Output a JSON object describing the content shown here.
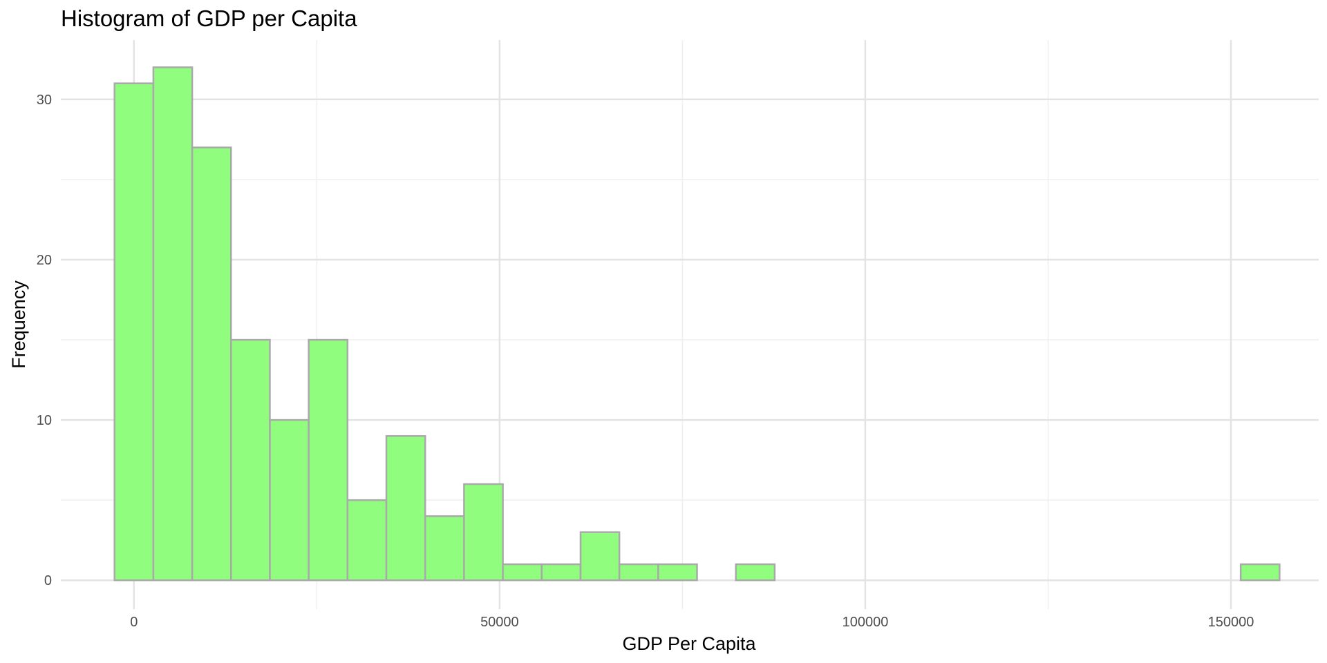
{
  "chart_data": {
    "type": "bar",
    "title": "Histogram of GDP per Capita",
    "xlabel": "GDP Per Capita",
    "ylabel": "Frequency",
    "bin_width": 5310,
    "bins": [
      {
        "x0": -2655,
        "x1": 2655,
        "count": 31
      },
      {
        "x0": 2655,
        "x1": 7965,
        "count": 32
      },
      {
        "x0": 7965,
        "x1": 13275,
        "count": 27
      },
      {
        "x0": 13275,
        "x1": 18585,
        "count": 15
      },
      {
        "x0": 18585,
        "x1": 23895,
        "count": 10
      },
      {
        "x0": 23895,
        "x1": 29205,
        "count": 15
      },
      {
        "x0": 29205,
        "x1": 34515,
        "count": 5
      },
      {
        "x0": 34515,
        "x1": 39825,
        "count": 9
      },
      {
        "x0": 39825,
        "x1": 45135,
        "count": 4
      },
      {
        "x0": 45135,
        "x1": 50445,
        "count": 6
      },
      {
        "x0": 50445,
        "x1": 55755,
        "count": 1
      },
      {
        "x0": 55755,
        "x1": 61065,
        "count": 1
      },
      {
        "x0": 61065,
        "x1": 66375,
        "count": 3
      },
      {
        "x0": 66375,
        "x1": 71685,
        "count": 1
      },
      {
        "x0": 71685,
        "x1": 76995,
        "count": 1
      },
      {
        "x0": 76995,
        "x1": 82305,
        "count": 0
      },
      {
        "x0": 82305,
        "x1": 87615,
        "count": 1
      },
      {
        "x0": 87615,
        "x1": 92925,
        "count": 0
      },
      {
        "x0": 92925,
        "x1": 98235,
        "count": 0
      },
      {
        "x0": 98235,
        "x1": 103545,
        "count": 0
      },
      {
        "x0": 103545,
        "x1": 108855,
        "count": 0
      },
      {
        "x0": 108855,
        "x1": 114165,
        "count": 0
      },
      {
        "x0": 114165,
        "x1": 119475,
        "count": 0
      },
      {
        "x0": 119475,
        "x1": 124785,
        "count": 0
      },
      {
        "x0": 124785,
        "x1": 130095,
        "count": 0
      },
      {
        "x0": 130095,
        "x1": 135405,
        "count": 0
      },
      {
        "x0": 135405,
        "x1": 140715,
        "count": 0
      },
      {
        "x0": 140715,
        "x1": 146025,
        "count": 0
      },
      {
        "x0": 146025,
        "x1": 151335,
        "count": 0
      },
      {
        "x0": 151335,
        "x1": 156645,
        "count": 1
      }
    ],
    "xlim": [
      -10000,
      162000
    ],
    "ylim": [
      -1.8,
      33.7
    ],
    "x_ticks": [
      0,
      50000,
      100000,
      150000
    ],
    "x_tick_labels": [
      "0",
      "50000",
      "100000",
      "150000"
    ],
    "x_minor_ticks": [
      25000,
      75000,
      125000
    ],
    "y_ticks": [
      0,
      10,
      20,
      30
    ],
    "y_tick_labels": [
      "0",
      "10",
      "20",
      "30"
    ],
    "y_minor_ticks": [
      5,
      15,
      25
    ],
    "grid": true,
    "colors": {
      "fill": "#90fd7e",
      "stroke": "#a9a9a9",
      "grid_major": "#e3e3e3",
      "grid_minor": "#efefef"
    }
  }
}
